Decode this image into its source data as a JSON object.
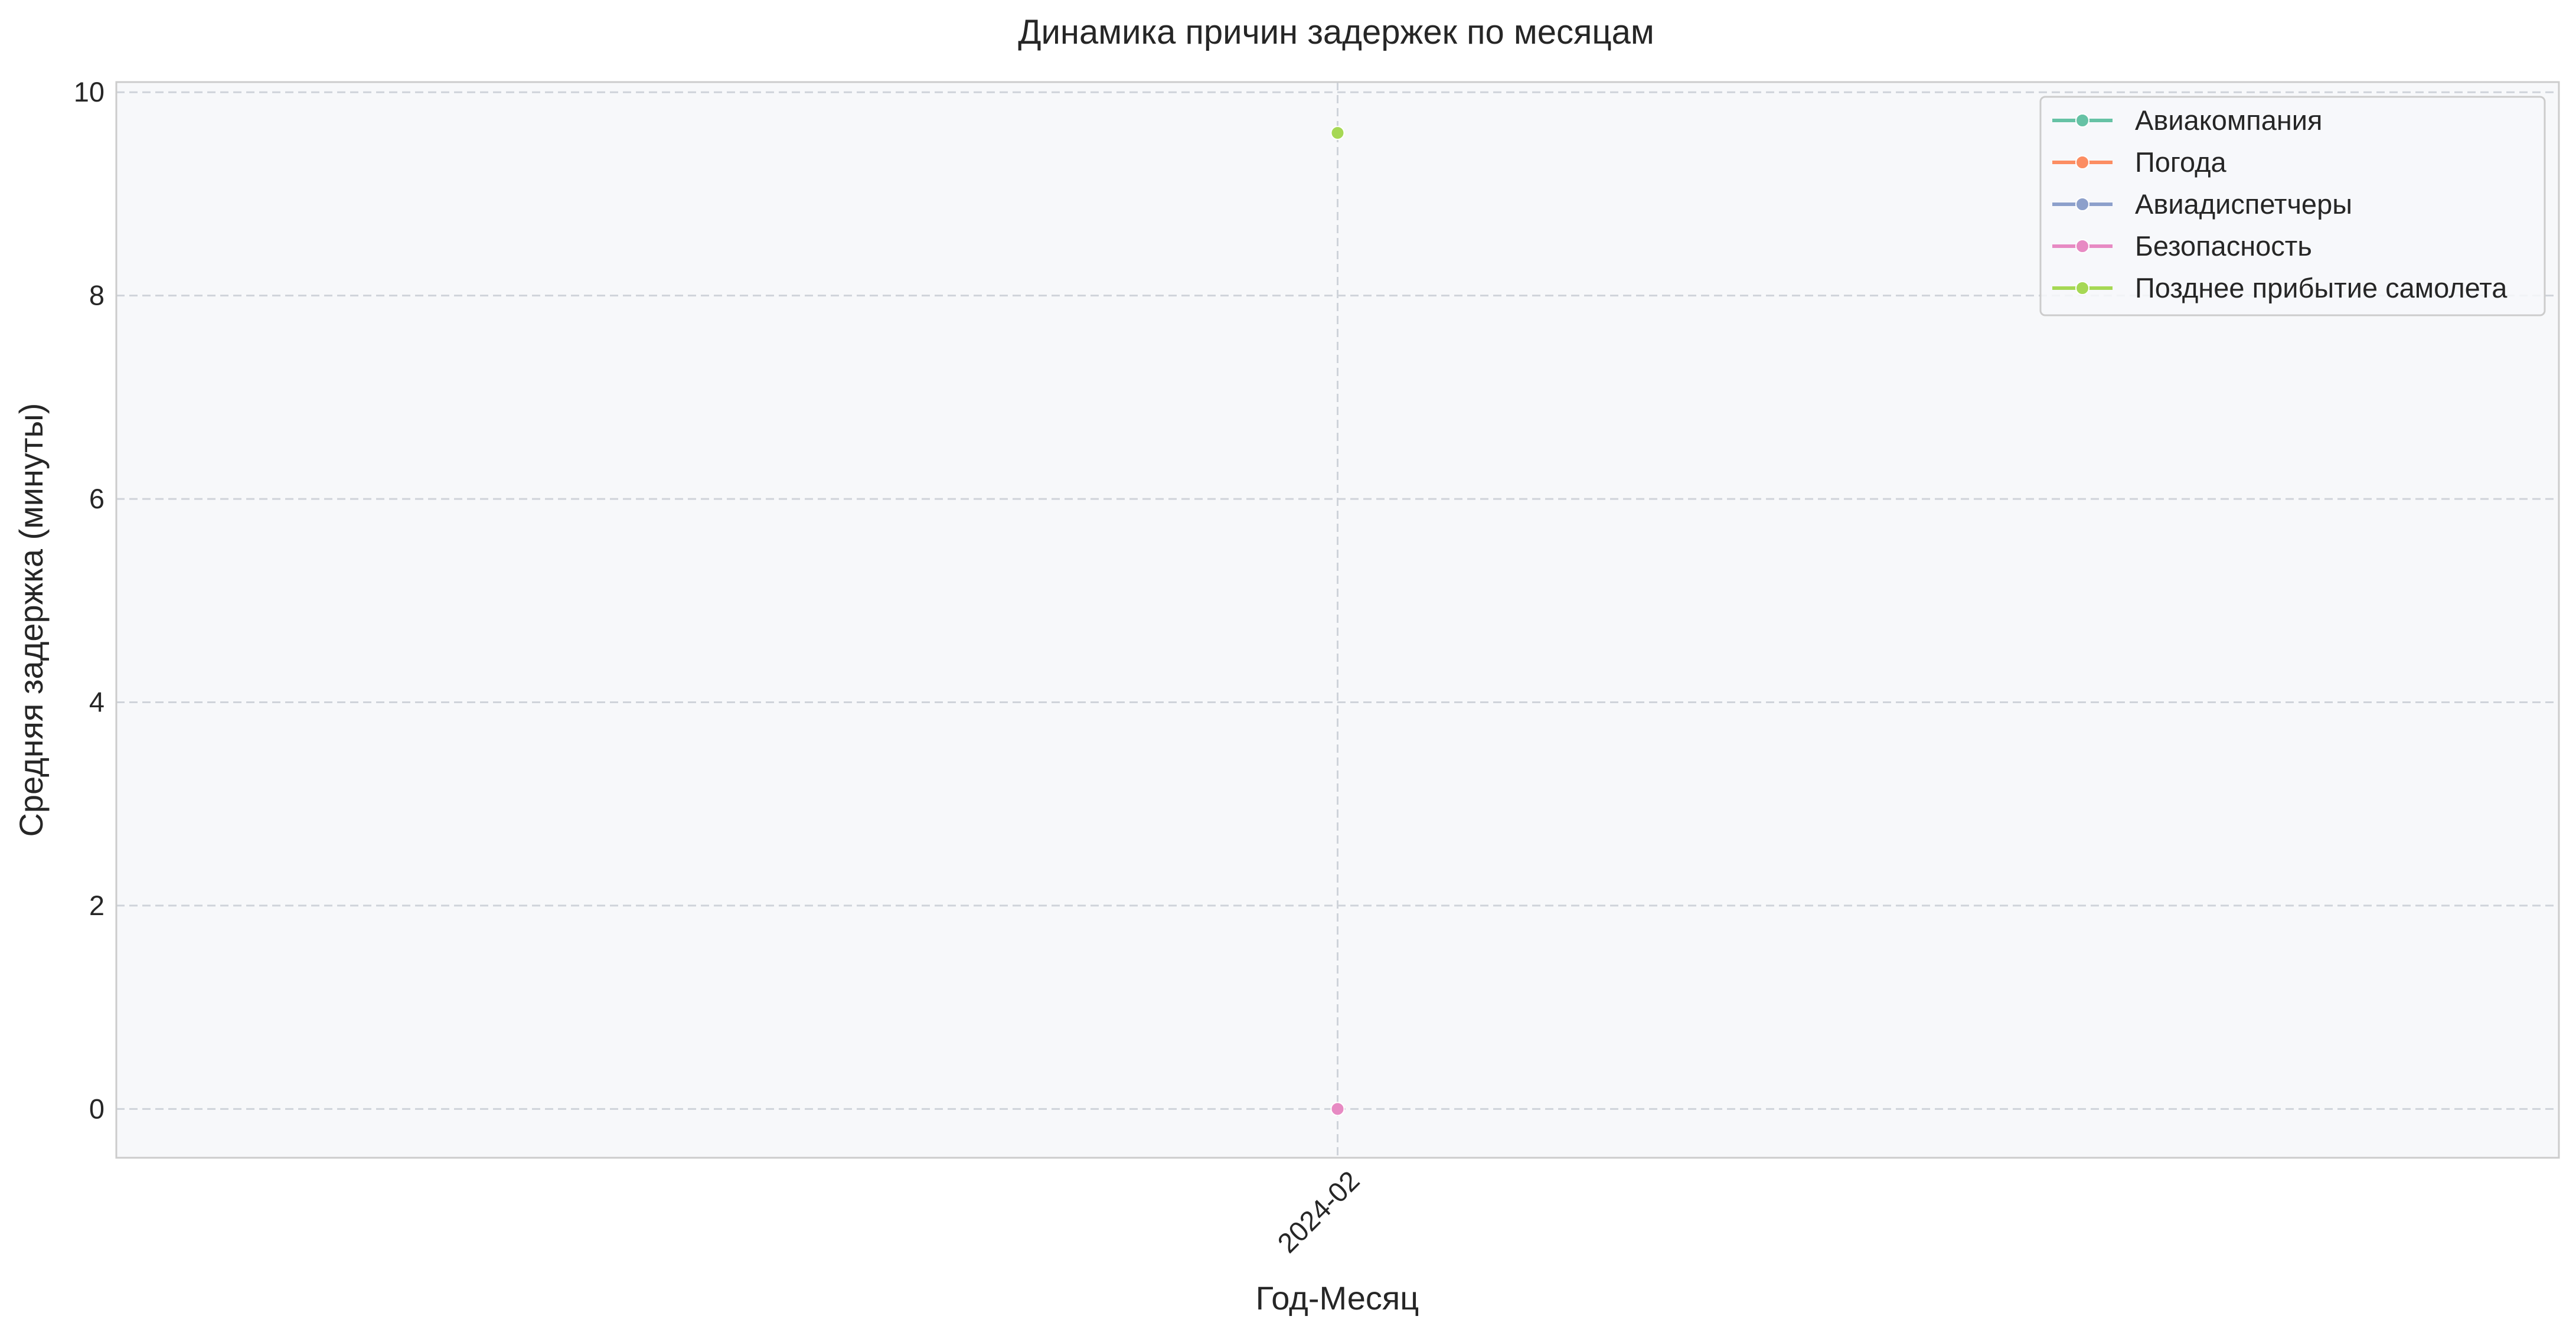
{
  "chart_data": {
    "type": "line",
    "title": "Динамика причин задержек по месяцам",
    "xlabel": "Год-Месяц",
    "ylabel": "Средняя задержка (минуты)",
    "categories": [
      "2024-02"
    ],
    "ylim": [
      -0.48,
      10.1
    ],
    "yticks": [
      0,
      2,
      4,
      6,
      8,
      10
    ],
    "grid": true,
    "legend_position": "top-right",
    "series": [
      {
        "name": "Авиакомпания",
        "color": "#66c2a5",
        "values": [
          0
        ]
      },
      {
        "name": "Погода",
        "color": "#fc8d62",
        "values": [
          0
        ]
      },
      {
        "name": "Авиадиспетчеры",
        "color": "#8da0cb",
        "values": [
          0
        ]
      },
      {
        "name": "Безопасность",
        "color": "#e78ac3",
        "values": [
          0
        ]
      },
      {
        "name": "Позднее прибытие самолета",
        "color": "#a6d854",
        "values": [
          9.6
        ]
      }
    ]
  }
}
